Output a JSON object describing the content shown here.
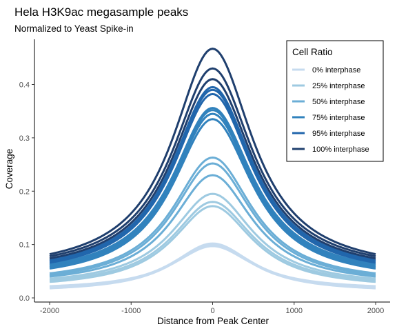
{
  "chart_data": {
    "type": "line",
    "title": "Hela H3K9ac megasample peaks",
    "subtitle": "Normalized to Yeast Spike-in",
    "xlabel": "Distance from Peak Center",
    "ylabel": "Coverage",
    "xlim": [
      -2000,
      2000
    ],
    "ylim": [
      0,
      0.48
    ],
    "x_ticks": [
      -2000,
      -1000,
      0,
      1000,
      2000
    ],
    "x_tick_labels": [
      "-2000",
      "-1000",
      "0",
      "1000",
      "2000"
    ],
    "y_ticks": [
      0.0,
      0.1,
      0.2,
      0.3,
      0.4
    ],
    "y_tick_labels": [
      "0.0",
      "0.1",
      "0.2",
      "0.3",
      "0.4"
    ],
    "grid": false,
    "legend": {
      "title": "Cell Ratio",
      "position": "top-right",
      "entries": [
        {
          "label": "0% interphase",
          "color": "#c6dbef"
        },
        {
          "label": "25% interphase",
          "color": "#9ecae1"
        },
        {
          "label": "50% interphase",
          "color": "#6baed6"
        },
        {
          "label": "75% interphase",
          "color": "#3182bd"
        },
        {
          "label": "95% interphase",
          "color": "#2166ac"
        },
        {
          "label": "100% interphase",
          "color": "#1f3f6e"
        }
      ]
    },
    "series": [
      {
        "group": 0,
        "baseline": 0.018,
        "peak": 0.1
      },
      {
        "group": 0,
        "baseline": 0.02,
        "peak": 0.102
      },
      {
        "group": 0,
        "baseline": 0.022,
        "peak": 0.097
      },
      {
        "group": 1,
        "baseline": 0.03,
        "peak": 0.172
      },
      {
        "group": 1,
        "baseline": 0.033,
        "peak": 0.18
      },
      {
        "group": 1,
        "baseline": 0.036,
        "peak": 0.195
      },
      {
        "group": 2,
        "baseline": 0.04,
        "peak": 0.23
      },
      {
        "group": 2,
        "baseline": 0.043,
        "peak": 0.252
      },
      {
        "group": 2,
        "baseline": 0.046,
        "peak": 0.263
      },
      {
        "group": 3,
        "baseline": 0.055,
        "peak": 0.335
      },
      {
        "group": 3,
        "baseline": 0.058,
        "peak": 0.345
      },
      {
        "group": 3,
        "baseline": 0.061,
        "peak": 0.352
      },
      {
        "group": 3,
        "baseline": 0.063,
        "peak": 0.356
      },
      {
        "group": 4,
        "baseline": 0.066,
        "peak": 0.382
      },
      {
        "group": 4,
        "baseline": 0.069,
        "peak": 0.39
      },
      {
        "group": 4,
        "baseline": 0.071,
        "peak": 0.395
      },
      {
        "group": 5,
        "baseline": 0.074,
        "peak": 0.41
      },
      {
        "group": 5,
        "baseline": 0.078,
        "peak": 0.43
      },
      {
        "group": 5,
        "baseline": 0.082,
        "peak": 0.467
      }
    ]
  }
}
